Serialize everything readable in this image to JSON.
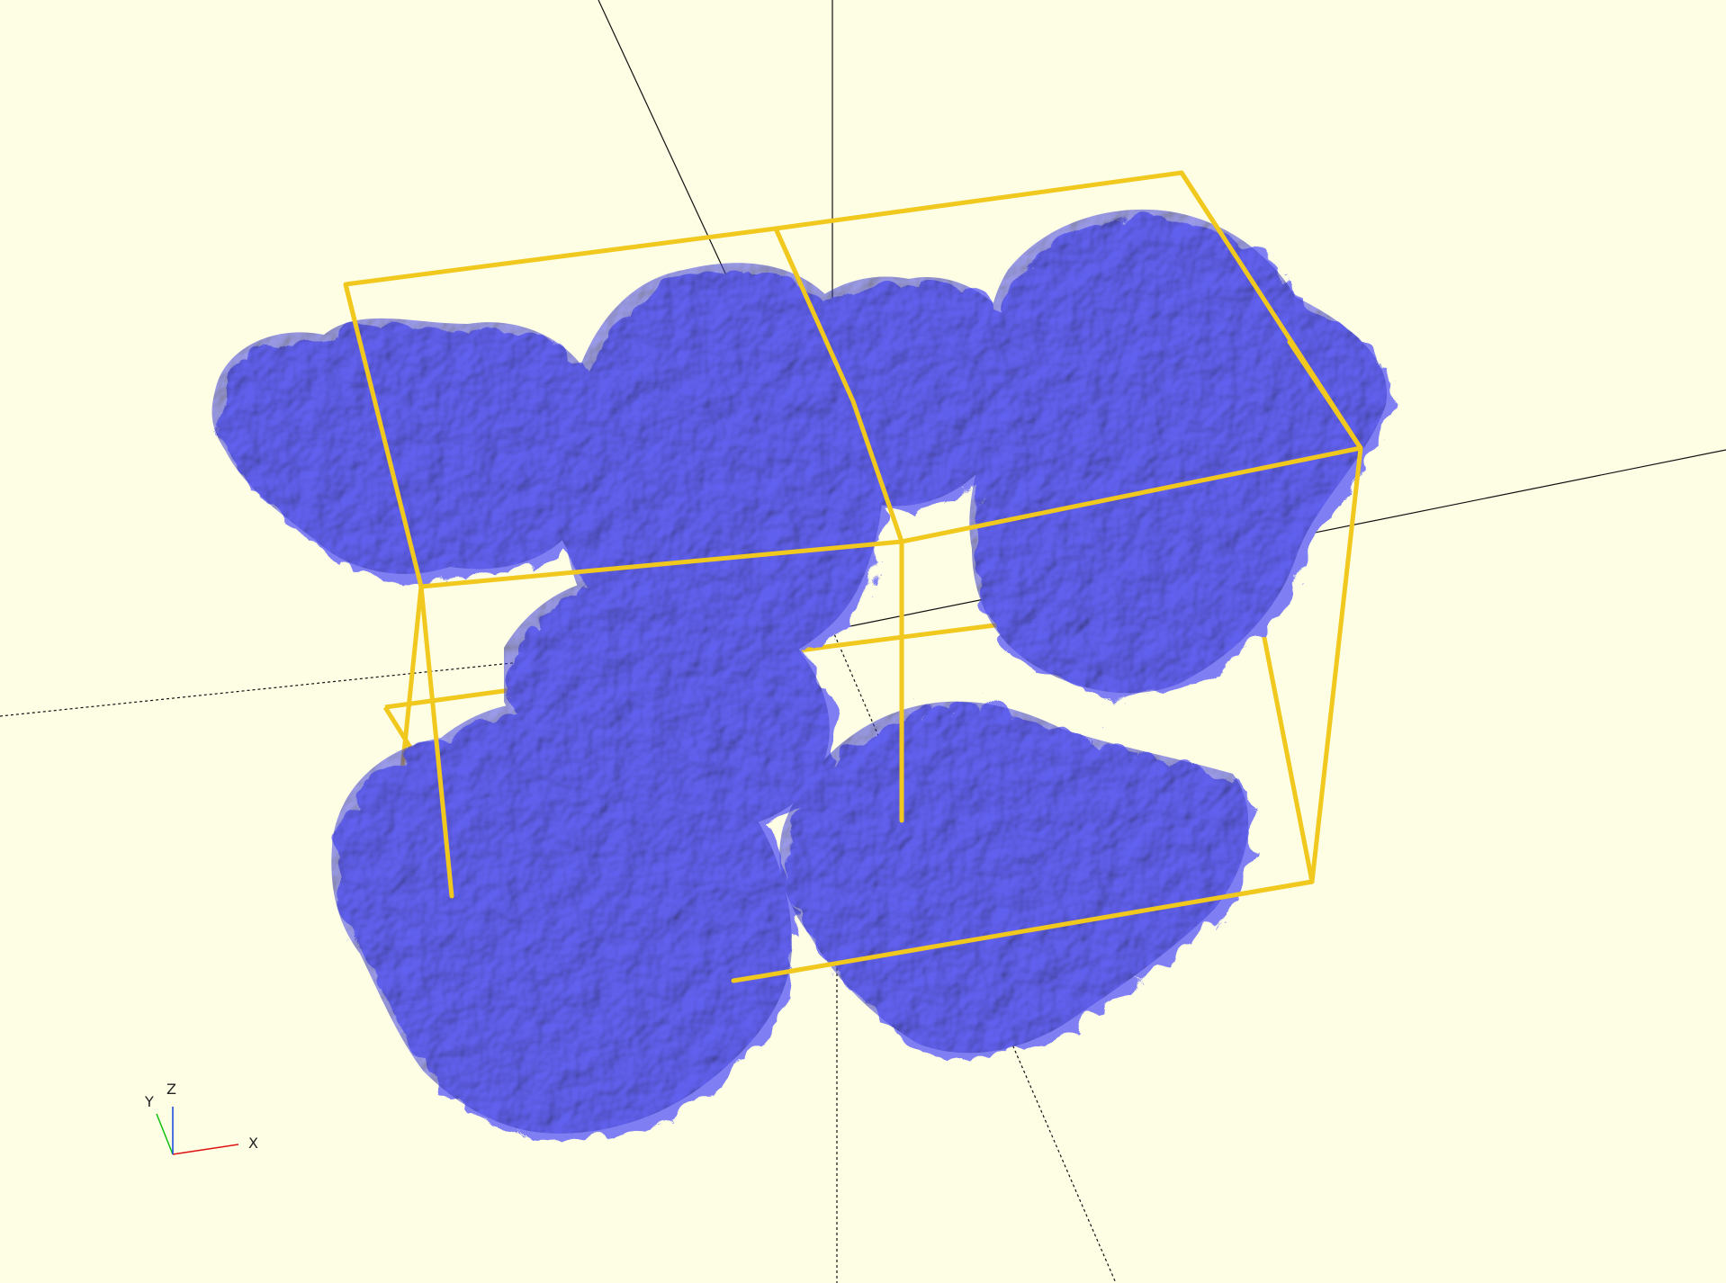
{
  "viewport": {
    "background_color": "#fefee5"
  },
  "model": {
    "surface_color": "#7f7ff3",
    "surface_shadow_color": "#3e3e86",
    "surface_highlight_color": "#a4a4ff",
    "unit_cell_color": "#f0c81e",
    "axes_color": "#111111"
  },
  "axes_indicator": {
    "x_label": "X",
    "y_label": "Y",
    "z_label": "Z",
    "x_color": "#e01010",
    "y_color": "#10c010",
    "z_color": "#1040e0"
  }
}
